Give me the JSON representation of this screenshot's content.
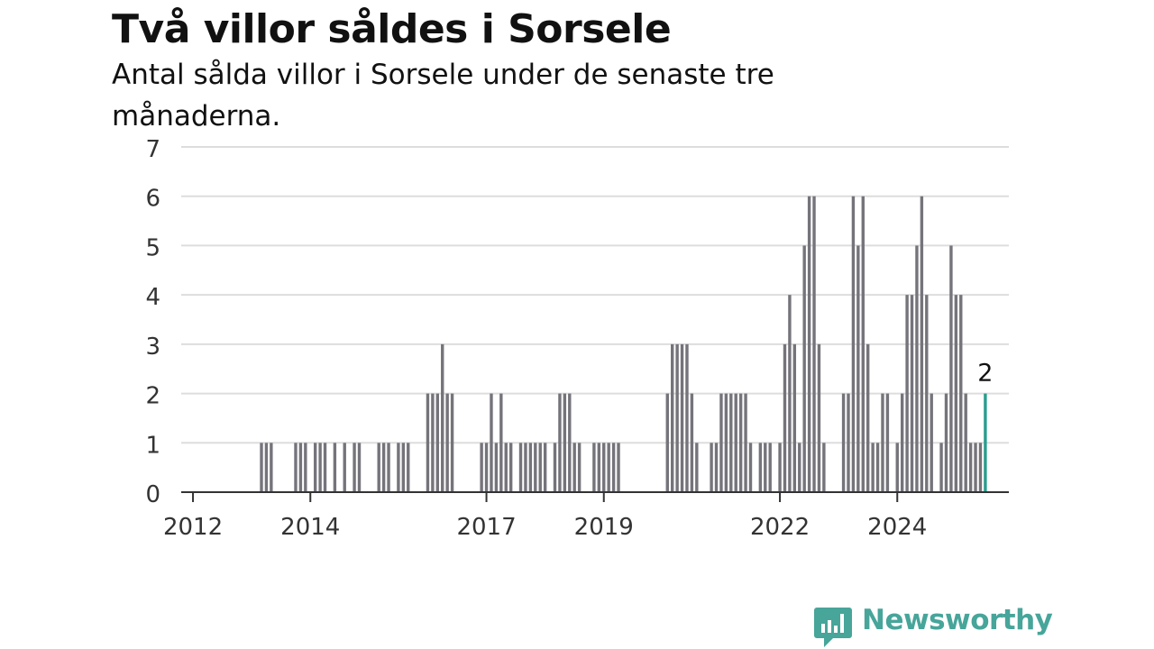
{
  "header": {
    "title": "Två villor såldes i Sorsele",
    "subtitle": "Antal sålda villor i Sorsele under de senaste tre månaderna."
  },
  "brand": {
    "name": "Newsworthy",
    "color": "#47a59a"
  },
  "colors": {
    "bar": "#75747b",
    "highlight": "#2a9d8f",
    "grid": "#dddddd",
    "axis": "#333333",
    "text": "#333333"
  },
  "chart_data": {
    "type": "bar",
    "ylim": [
      0,
      7
    ],
    "yticks": [
      0,
      1,
      2,
      3,
      4,
      5,
      6,
      7
    ],
    "grid": true,
    "legend": "none",
    "start_month": "2011-11",
    "xtick_labels": [
      {
        "label": "2012",
        "month": "2012-01"
      },
      {
        "label": "2014",
        "month": "2014-01"
      },
      {
        "label": "2017",
        "month": "2017-01"
      },
      {
        "label": "2019",
        "month": "2019-01"
      },
      {
        "label": "2022",
        "month": "2022-01"
      },
      {
        "label": "2024",
        "month": "2024-01"
      }
    ],
    "values": [
      0,
      0,
      0,
      0,
      0,
      0,
      0,
      0,
      0,
      0,
      0,
      0,
      0,
      0,
      0,
      0,
      1,
      1,
      1,
      0,
      0,
      0,
      0,
      1,
      1,
      1,
      0,
      1,
      1,
      1,
      0,
      1,
      0,
      1,
      0,
      1,
      1,
      0,
      0,
      0,
      1,
      1,
      1,
      0,
      1,
      1,
      1,
      0,
      0,
      0,
      2,
      2,
      2,
      3,
      2,
      2,
      0,
      0,
      0,
      0,
      0,
      1,
      1,
      2,
      1,
      2,
      1,
      1,
      0,
      1,
      1,
      1,
      1,
      1,
      1,
      0,
      1,
      2,
      2,
      2,
      1,
      1,
      0,
      0,
      1,
      1,
      1,
      1,
      1,
      1,
      0,
      0,
      0,
      0,
      0,
      0,
      0,
      0,
      0,
      2,
      3,
      3,
      3,
      3,
      2,
      1,
      0,
      0,
      1,
      1,
      2,
      2,
      2,
      2,
      2,
      2,
      1,
      0,
      1,
      1,
      1,
      0,
      1,
      3,
      4,
      3,
      1,
      5,
      6,
      6,
      3,
      1,
      0,
      0,
      0,
      2,
      2,
      6,
      5,
      6,
      3,
      1,
      1,
      2,
      2,
      0,
      1,
      2,
      4,
      4,
      5,
      6,
      4,
      2,
      0,
      1,
      2,
      5,
      4,
      4,
      2,
      1,
      1,
      1,
      2
    ],
    "last_value_label": "2"
  }
}
